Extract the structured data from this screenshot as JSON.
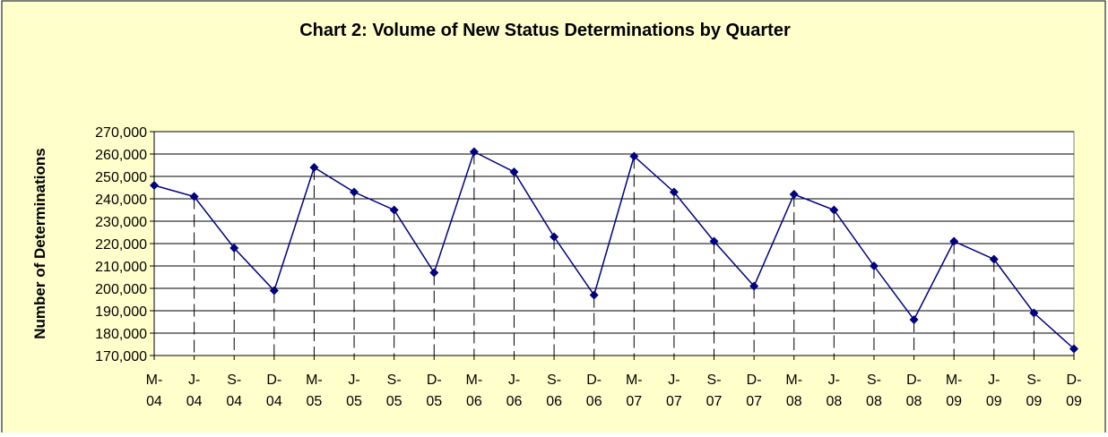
{
  "chart_data": {
    "type": "line",
    "title": "Chart 2: Volume of New Status Determinations by Quarter",
    "y_label": "Number of Determinations",
    "categories": [
      "M-\n04",
      "J-\n04",
      "S-\n04",
      "D-\n04",
      "M-\n05",
      "J-\n05",
      "S-\n05",
      "D-\n05",
      "M-\n06",
      "J-\n06",
      "S-\n06",
      "D-\n06",
      "M-\n07",
      "J-\n07",
      "S-\n07",
      "D-\n07",
      "M-\n08",
      "J-\n08",
      "S-\n08",
      "D-\n08",
      "M-\n09",
      "J-\n09",
      "S-\n09",
      "D-\n09"
    ],
    "series": [
      {
        "name": "New Status Determinations",
        "color": "#000080",
        "values": [
          246000,
          241000,
          218000,
          199000,
          254000,
          243000,
          235000,
          207000,
          261000,
          252000,
          223000,
          197000,
          259000,
          243000,
          221000,
          201000,
          242000,
          235000,
          210000,
          186000,
          221000,
          213000,
          189000,
          173000
        ]
      }
    ],
    "ylim": [
      170000,
      270000
    ],
    "yticks": [
      {
        "value": 170000,
        "label": "170,000"
      },
      {
        "value": 180000,
        "label": "180,000"
      },
      {
        "value": 190000,
        "label": "190,000"
      },
      {
        "value": 200000,
        "label": "200,000"
      },
      {
        "value": 210000,
        "label": "210,000"
      },
      {
        "value": 220000,
        "label": "220,000"
      },
      {
        "value": 230000,
        "label": "230,000"
      },
      {
        "value": 240000,
        "label": "240,000"
      },
      {
        "value": 250000,
        "label": "250,000"
      },
      {
        "value": 260000,
        "label": "260,000"
      },
      {
        "value": 270000,
        "label": "270,000"
      }
    ],
    "grid": true,
    "drop_lines": true,
    "background": "#ffffcc"
  }
}
